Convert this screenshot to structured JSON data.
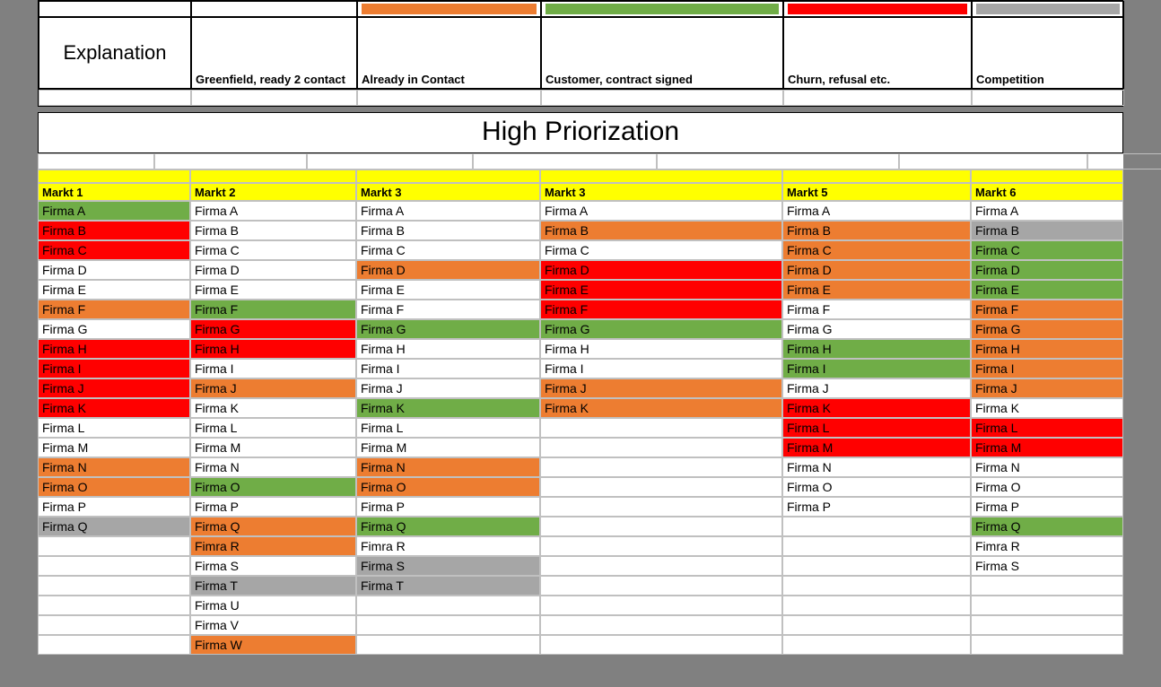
{
  "colors": {
    "greenfield": "#ffffff",
    "contact": "#ed7d31",
    "signed": "#70ad47",
    "churn": "#ff0000",
    "competition": "#a6a6a6",
    "header": "#ffff00",
    "grid_border": "#c0c0c0",
    "page_bg": "#808080"
  },
  "legend": {
    "title": "Explanation",
    "items": [
      {
        "label": "Greenfield,  ready 2 contact",
        "color": "#ffffff"
      },
      {
        "label": "Already in Contact",
        "color": "#ed7d31"
      },
      {
        "label": "Customer, contract signed",
        "color": "#70ad47"
      },
      {
        "label": "Churn, refusal etc.",
        "color": "#ff0000"
      },
      {
        "label": "Competition",
        "color": "#a6a6a6"
      }
    ]
  },
  "title": "High Priorization",
  "columns": [
    "Markt 1",
    "Markt 2",
    "Markt 3",
    "Markt 3",
    "Markt 5",
    "Markt 6"
  ],
  "status_color": {
    "": "#ffffff",
    "c": "#ed7d31",
    "s": "#70ad47",
    "x": "#ff0000",
    "p": "#a6a6a6"
  },
  "rows": [
    [
      {
        "t": "Firma A",
        "s": "s"
      },
      {
        "t": "Firma A",
        "s": ""
      },
      {
        "t": "Firma A",
        "s": ""
      },
      {
        "t": "Firma A",
        "s": ""
      },
      {
        "t": "Firma A",
        "s": ""
      },
      {
        "t": "Firma A",
        "s": ""
      }
    ],
    [
      {
        "t": "Firma B",
        "s": "x"
      },
      {
        "t": "Firma B",
        "s": ""
      },
      {
        "t": "Firma B",
        "s": ""
      },
      {
        "t": "Firma B",
        "s": "c"
      },
      {
        "t": "Firma B",
        "s": "c"
      },
      {
        "t": "Firma B",
        "s": "p"
      }
    ],
    [
      {
        "t": "Firma C",
        "s": "x"
      },
      {
        "t": "Firma C",
        "s": ""
      },
      {
        "t": "Firma C",
        "s": ""
      },
      {
        "t": "Firma C",
        "s": ""
      },
      {
        "t": "Firma C",
        "s": "c"
      },
      {
        "t": "Firma C",
        "s": "s"
      }
    ],
    [
      {
        "t": "Firma D",
        "s": ""
      },
      {
        "t": "Firma D",
        "s": ""
      },
      {
        "t": "Firma D",
        "s": "c"
      },
      {
        "t": "Firma D",
        "s": "x"
      },
      {
        "t": "Firma D",
        "s": "c"
      },
      {
        "t": "Firma D",
        "s": "s"
      }
    ],
    [
      {
        "t": "Firma E",
        "s": ""
      },
      {
        "t": "Firma E",
        "s": ""
      },
      {
        "t": "Firma E",
        "s": ""
      },
      {
        "t": "Firma E",
        "s": "x"
      },
      {
        "t": "Firma E",
        "s": "c"
      },
      {
        "t": "Firma E",
        "s": "s"
      }
    ],
    [
      {
        "t": "Firma F",
        "s": "c"
      },
      {
        "t": "Firma F",
        "s": "s"
      },
      {
        "t": "Firma F",
        "s": ""
      },
      {
        "t": "Firma F",
        "s": "x"
      },
      {
        "t": "Firma F",
        "s": ""
      },
      {
        "t": "Firma F",
        "s": "c"
      }
    ],
    [
      {
        "t": "Firma G",
        "s": ""
      },
      {
        "t": "Firma G",
        "s": "x"
      },
      {
        "t": "Firma G",
        "s": "s"
      },
      {
        "t": "Firma G",
        "s": "s"
      },
      {
        "t": "Firma G",
        "s": ""
      },
      {
        "t": "Firma G",
        "s": "c"
      }
    ],
    [
      {
        "t": "Firma H",
        "s": "x"
      },
      {
        "t": "Firma H",
        "s": "x"
      },
      {
        "t": "Firma H",
        "s": ""
      },
      {
        "t": "Firma H",
        "s": ""
      },
      {
        "t": "Firma H",
        "s": "s"
      },
      {
        "t": "Firma H",
        "s": "c"
      }
    ],
    [
      {
        "t": "Firma I",
        "s": "x"
      },
      {
        "t": "Firma I",
        "s": ""
      },
      {
        "t": "Firma I",
        "s": ""
      },
      {
        "t": "Firma I",
        "s": ""
      },
      {
        "t": "Firma I",
        "s": "s"
      },
      {
        "t": "Firma I",
        "s": "c"
      }
    ],
    [
      {
        "t": "Firma J",
        "s": "x"
      },
      {
        "t": "Firma J",
        "s": "c"
      },
      {
        "t": "Firma J",
        "s": ""
      },
      {
        "t": "Firma J",
        "s": "c"
      },
      {
        "t": "Firma J",
        "s": ""
      },
      {
        "t": "Firma J",
        "s": "c"
      }
    ],
    [
      {
        "t": "Firma K",
        "s": "x"
      },
      {
        "t": "Firma K",
        "s": ""
      },
      {
        "t": "Firma K",
        "s": "s"
      },
      {
        "t": "Firma K",
        "s": "c"
      },
      {
        "t": "Firma K",
        "s": "x"
      },
      {
        "t": "Firma K",
        "s": ""
      }
    ],
    [
      {
        "t": "Firma L",
        "s": ""
      },
      {
        "t": "Firma L",
        "s": ""
      },
      {
        "t": "Firma L",
        "s": ""
      },
      {
        "t": "",
        "s": ""
      },
      {
        "t": "Firma L",
        "s": "x"
      },
      {
        "t": "Firma L",
        "s": "x"
      }
    ],
    [
      {
        "t": "Firma M",
        "s": ""
      },
      {
        "t": "Firma M",
        "s": ""
      },
      {
        "t": "Firma M",
        "s": ""
      },
      {
        "t": "",
        "s": ""
      },
      {
        "t": "Firma M",
        "s": "x"
      },
      {
        "t": "Firma M",
        "s": "x"
      }
    ],
    [
      {
        "t": "Firma N",
        "s": "c"
      },
      {
        "t": "Firma N",
        "s": ""
      },
      {
        "t": "Firma N",
        "s": "c"
      },
      {
        "t": "",
        "s": ""
      },
      {
        "t": "Firma N",
        "s": ""
      },
      {
        "t": "Firma N",
        "s": ""
      }
    ],
    [
      {
        "t": "Firma O",
        "s": "c"
      },
      {
        "t": "Firma O",
        "s": "s"
      },
      {
        "t": "Firma O",
        "s": "c"
      },
      {
        "t": "",
        "s": ""
      },
      {
        "t": "Firma O",
        "s": ""
      },
      {
        "t": "Firma O",
        "s": ""
      }
    ],
    [
      {
        "t": "Firma P",
        "s": ""
      },
      {
        "t": "Firma P",
        "s": ""
      },
      {
        "t": "Firma P",
        "s": ""
      },
      {
        "t": "",
        "s": ""
      },
      {
        "t": "Firma P",
        "s": ""
      },
      {
        "t": "Firma P",
        "s": ""
      }
    ],
    [
      {
        "t": "Firma Q",
        "s": "p"
      },
      {
        "t": "Firma Q",
        "s": "c"
      },
      {
        "t": "Firma Q",
        "s": "s"
      },
      {
        "t": "",
        "s": ""
      },
      {
        "t": "",
        "s": ""
      },
      {
        "t": "Firma Q",
        "s": "s"
      }
    ],
    [
      {
        "t": "",
        "s": ""
      },
      {
        "t": "Fimra R",
        "s": "c"
      },
      {
        "t": "Fimra R",
        "s": ""
      },
      {
        "t": "",
        "s": ""
      },
      {
        "t": "",
        "s": ""
      },
      {
        "t": "Fimra R",
        "s": ""
      }
    ],
    [
      {
        "t": "",
        "s": ""
      },
      {
        "t": "Firma S",
        "s": ""
      },
      {
        "t": "Firma S",
        "s": "p"
      },
      {
        "t": "",
        "s": ""
      },
      {
        "t": "",
        "s": ""
      },
      {
        "t": "Firma S",
        "s": ""
      }
    ],
    [
      {
        "t": "",
        "s": ""
      },
      {
        "t": "Firma T",
        "s": "p"
      },
      {
        "t": "Firma T",
        "s": "p"
      },
      {
        "t": "",
        "s": ""
      },
      {
        "t": "",
        "s": ""
      },
      {
        "t": "",
        "s": ""
      }
    ],
    [
      {
        "t": "",
        "s": ""
      },
      {
        "t": "Firma U",
        "s": ""
      },
      {
        "t": "",
        "s": ""
      },
      {
        "t": "",
        "s": ""
      },
      {
        "t": "",
        "s": ""
      },
      {
        "t": "",
        "s": ""
      }
    ],
    [
      {
        "t": "",
        "s": ""
      },
      {
        "t": "Firma V",
        "s": ""
      },
      {
        "t": "",
        "s": ""
      },
      {
        "t": "",
        "s": ""
      },
      {
        "t": "",
        "s": ""
      },
      {
        "t": "",
        "s": ""
      }
    ],
    [
      {
        "t": "",
        "s": ""
      },
      {
        "t": "Firma W",
        "s": "c"
      },
      {
        "t": "",
        "s": ""
      },
      {
        "t": "",
        "s": ""
      },
      {
        "t": "",
        "s": ""
      },
      {
        "t": "",
        "s": ""
      }
    ]
  ]
}
